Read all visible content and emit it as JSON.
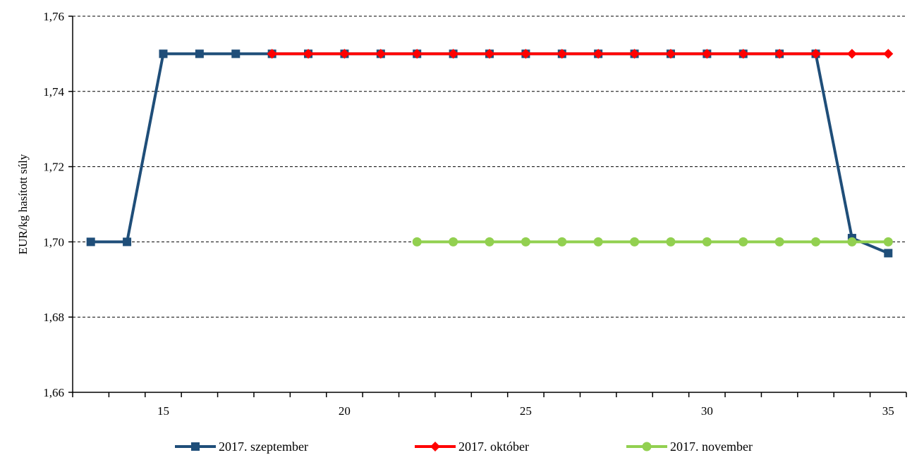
{
  "chart_data": {
    "type": "line",
    "title": "",
    "xlabel": "",
    "ylabel": "EUR/kg hasított súly",
    "xlim": [
      12.5,
      35.5
    ],
    "ylim": [
      1.66,
      1.76
    ],
    "x_ticks_labeled": [
      15,
      20,
      25,
      30,
      35
    ],
    "x_ticks_minor": [
      13,
      14,
      15,
      16,
      17,
      18,
      19,
      20,
      21,
      22,
      23,
      24,
      25,
      26,
      27,
      28,
      29,
      30,
      31,
      32,
      33,
      34,
      35
    ],
    "y_ticks": [
      1.66,
      1.68,
      1.7,
      1.72,
      1.74,
      1.76
    ],
    "y_tick_labels": [
      "1,66",
      "1,68",
      "1,70",
      "1,72",
      "1,74",
      "1,76"
    ],
    "x_tick_labels": [
      "15",
      "20",
      "25",
      "30",
      "35"
    ],
    "grid": "horizontal dashed",
    "legend_position": "bottom",
    "series": [
      {
        "name": "2017. szeptember",
        "color": "#1f4e79",
        "marker": "square",
        "x": [
          13,
          14,
          15,
          16,
          17,
          18,
          19,
          20,
          21,
          22,
          23,
          24,
          25,
          26,
          27,
          28,
          29,
          30,
          31,
          32,
          33,
          34,
          35
        ],
        "values": [
          1.7,
          1.7,
          1.75,
          1.75,
          1.75,
          1.75,
          1.75,
          1.75,
          1.75,
          1.75,
          1.75,
          1.75,
          1.75,
          1.75,
          1.75,
          1.75,
          1.75,
          1.75,
          1.75,
          1.75,
          1.75,
          1.701,
          1.697
        ]
      },
      {
        "name": "2017. október",
        "color": "#ff0000",
        "marker": "diamond",
        "x": [
          18,
          19,
          20,
          21,
          22,
          23,
          24,
          25,
          26,
          27,
          28,
          29,
          30,
          31,
          32,
          33,
          34,
          35
        ],
        "values": [
          1.75,
          1.75,
          1.75,
          1.75,
          1.75,
          1.75,
          1.75,
          1.75,
          1.75,
          1.75,
          1.75,
          1.75,
          1.75,
          1.75,
          1.75,
          1.75,
          1.75,
          1.75
        ]
      },
      {
        "name": "2017. november",
        "color": "#92d050",
        "marker": "circle",
        "x": [
          22,
          23,
          24,
          25,
          26,
          27,
          28,
          29,
          30,
          31,
          32,
          33,
          34,
          35
        ],
        "values": [
          1.7,
          1.7,
          1.7,
          1.7,
          1.7,
          1.7,
          1.7,
          1.7,
          1.7,
          1.7,
          1.7,
          1.7,
          1.7,
          1.7
        ]
      }
    ]
  }
}
